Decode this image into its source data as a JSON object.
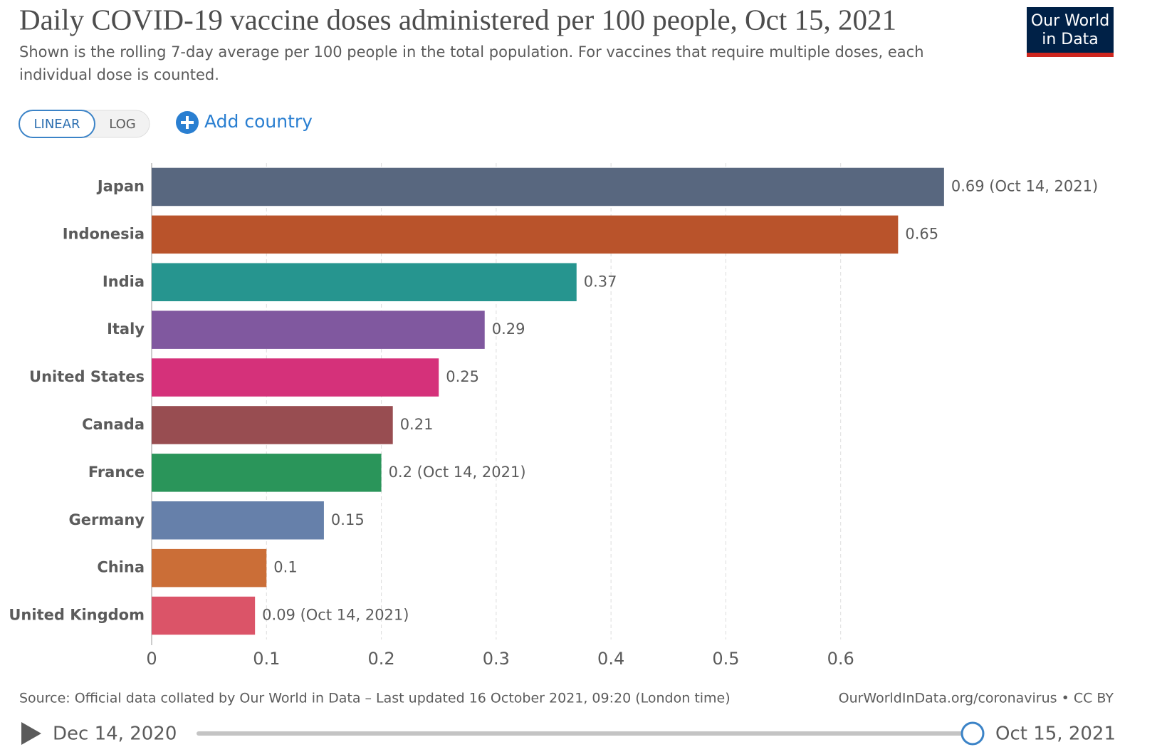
{
  "chart_data": {
    "type": "hbar",
    "title": "Daily COVID-19 vaccine doses administered per 100 people, Oct 15, 2021",
    "subtitle": [
      "Shown is the rolling 7-day average per 100 people in the total population. For vaccines that require multiple doses, each",
      "individual dose is counted."
    ],
    "categories": [
      "Japan",
      "Indonesia",
      "India",
      "Italy",
      "United States",
      "Canada",
      "France",
      "Germany",
      "China",
      "United Kingdom"
    ],
    "values": [
      0.69,
      0.65,
      0.37,
      0.29,
      0.25,
      0.21,
      0.2,
      0.15,
      0.1,
      0.09
    ],
    "value_labels": [
      "0.69 (Oct 14, 2021)",
      "0.65",
      "0.37",
      "0.29",
      "0.25",
      "0.21",
      "0.2 (Oct 14, 2021)",
      "0.15",
      "0.1",
      "0.09 (Oct 14, 2021)"
    ],
    "colors": [
      "#58677f",
      "#b9532b",
      "#26958f",
      "#80589f",
      "#d5317a",
      "#984d51",
      "#2a955a",
      "#6680aa",
      "#cb6e37",
      "#db5468"
    ],
    "xlim": [
      0,
      0.7
    ],
    "xticks": [
      0,
      0.1,
      0.2,
      0.3,
      0.4,
      0.5,
      0.6
    ],
    "grid": true
  },
  "logo": [
    "Our World",
    "in Data"
  ],
  "controls": {
    "linear": "LINEAR",
    "log": "LOG",
    "add": "Add country"
  },
  "footer": {
    "source": "Source: Official data collated by Our World in Data – Last updated 16 October 2021, 09:20 (London time)",
    "url": "OurWorldInData.org/coronavirus • CC BY"
  },
  "timeline": {
    "start": "Dec 14, 2020",
    "end": "Oct 15, 2021"
  }
}
